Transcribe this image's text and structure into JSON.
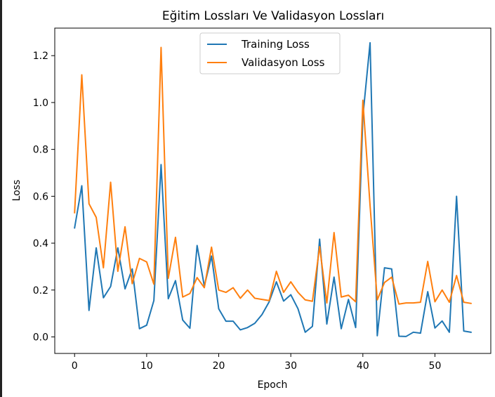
{
  "chart_data": {
    "type": "line",
    "title": "Eğitim Lossları Ve Validasyon Lossları",
    "xlabel": "Epoch",
    "ylabel": "Loss",
    "xlim": [
      -2.75,
      57.75
    ],
    "ylim": [
      -0.0705,
      1.3175
    ],
    "xticks": [
      0,
      10,
      20,
      30,
      40,
      50
    ],
    "yticks": [
      0.0,
      0.2,
      0.4,
      0.6,
      0.8,
      1.0,
      1.2
    ],
    "ytick_labels": [
      "0.0",
      "0.2",
      "0.4",
      "0.6",
      "0.8",
      "1.0",
      "1.2"
    ],
    "grid": false,
    "legend": "upper center",
    "x": [
      0,
      1,
      2,
      3,
      4,
      5,
      6,
      7,
      8,
      9,
      10,
      11,
      12,
      13,
      14,
      15,
      16,
      17,
      18,
      19,
      20,
      21,
      22,
      23,
      24,
      25,
      26,
      27,
      28,
      29,
      30,
      31,
      32,
      33,
      34,
      35,
      36,
      37,
      38,
      39,
      40,
      41,
      42,
      43,
      44,
      45,
      46,
      47,
      48,
      49,
      50,
      51,
      52,
      53,
      54,
      55
    ],
    "series": [
      {
        "name": "Training Loss",
        "color": "#1f77b4",
        "values": [
          0.465,
          0.645,
          0.113,
          0.38,
          0.167,
          0.215,
          0.38,
          0.205,
          0.29,
          0.035,
          0.05,
          0.155,
          0.735,
          0.163,
          0.24,
          0.072,
          0.037,
          0.39,
          0.217,
          0.345,
          0.12,
          0.067,
          0.067,
          0.03,
          0.04,
          0.058,
          0.095,
          0.15,
          0.235,
          0.153,
          0.18,
          0.12,
          0.02,
          0.045,
          0.417,
          0.055,
          0.255,
          0.035,
          0.16,
          0.04,
          0.94,
          1.255,
          0.005,
          0.295,
          0.29,
          0.003,
          0.002,
          0.02,
          0.016,
          0.193,
          0.038,
          0.068,
          0.02,
          0.6,
          0.025,
          0.02
        ]
      },
      {
        "name": "Validasyon Loss",
        "color": "#ff7f0e",
        "values": [
          0.53,
          1.118,
          0.568,
          0.51,
          0.295,
          0.66,
          0.28,
          0.47,
          0.227,
          0.335,
          0.32,
          0.225,
          1.235,
          0.25,
          0.425,
          0.17,
          0.185,
          0.253,
          0.21,
          0.383,
          0.2,
          0.19,
          0.21,
          0.165,
          0.2,
          0.165,
          0.16,
          0.155,
          0.28,
          0.19,
          0.235,
          0.19,
          0.158,
          0.152,
          0.385,
          0.145,
          0.445,
          0.17,
          0.178,
          0.15,
          1.01,
          0.56,
          0.158,
          0.232,
          0.255,
          0.14,
          0.145,
          0.145,
          0.148,
          0.322,
          0.15,
          0.2,
          0.148,
          0.262,
          0.148,
          0.143
        ]
      }
    ]
  }
}
